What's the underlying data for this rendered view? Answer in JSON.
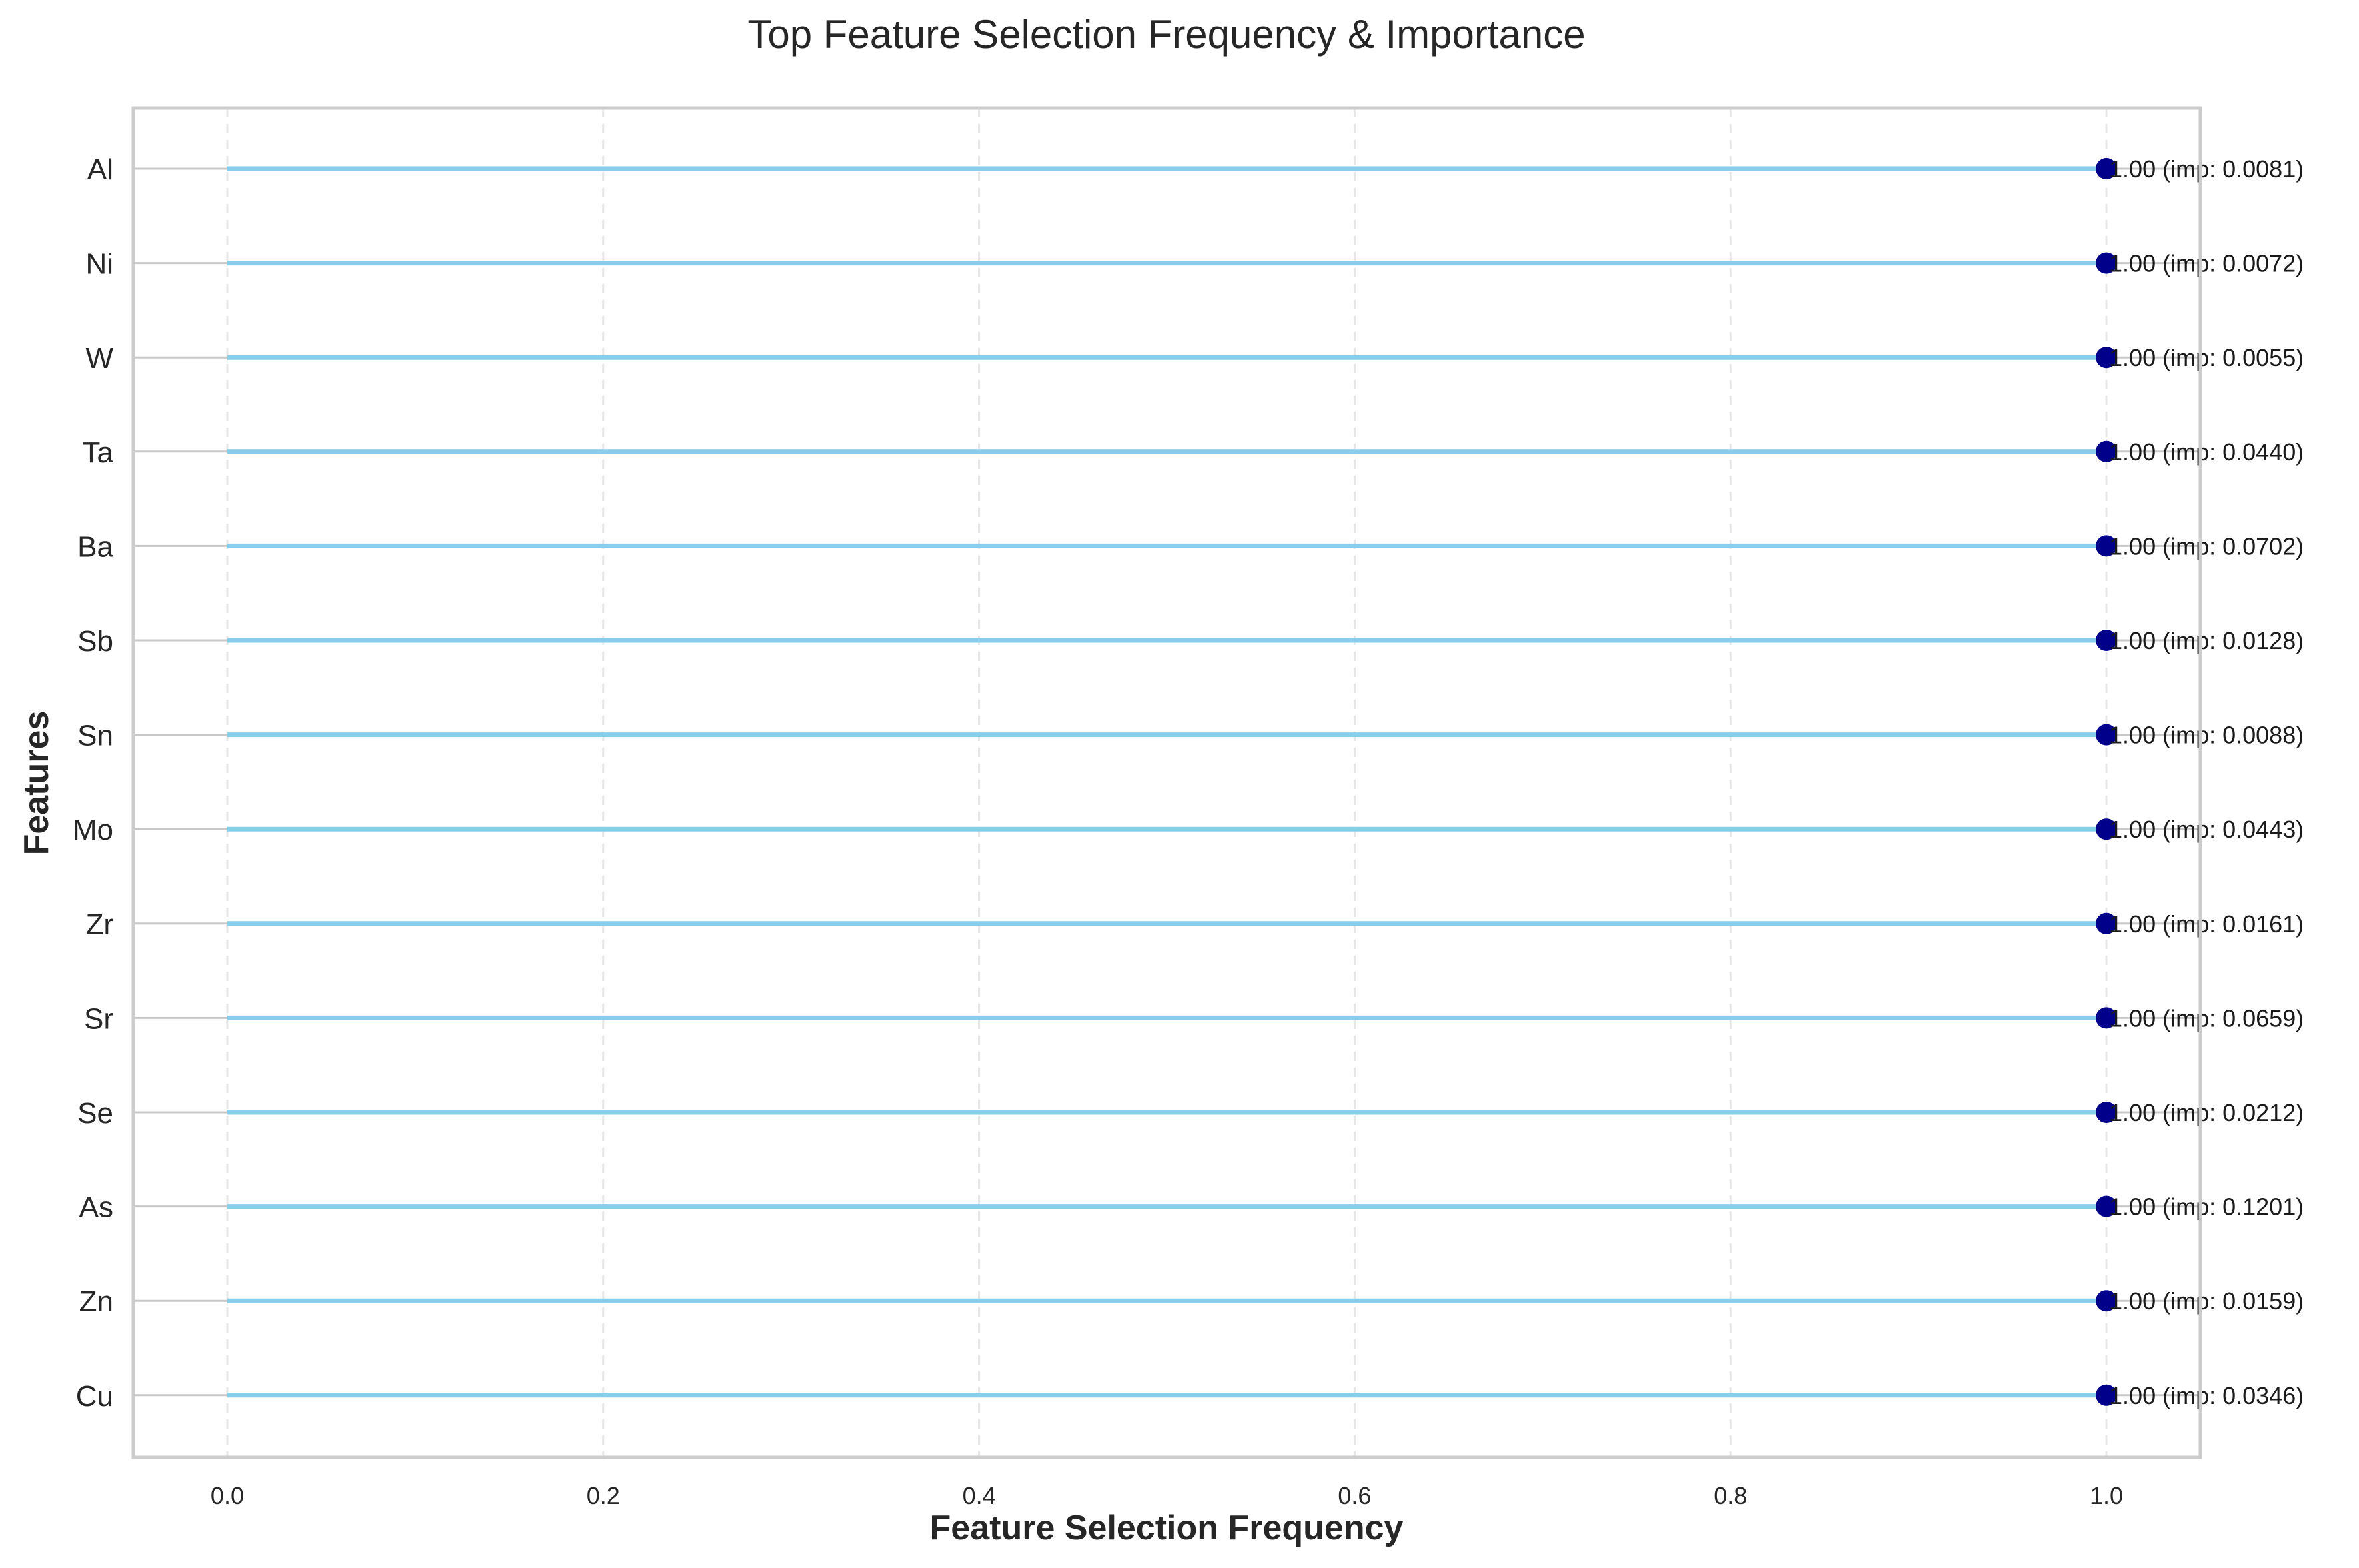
{
  "chart_data": {
    "type": "lollipop",
    "title": "Top Feature Selection Frequency & Importance",
    "xlabel": "Feature Selection Frequency",
    "ylabel": "Features",
    "xlim": [
      -0.05,
      1.05
    ],
    "xticks": [
      {
        "value": 0.0,
        "label": "0.0"
      },
      {
        "value": 0.2,
        "label": "0.2"
      },
      {
        "value": 0.4,
        "label": "0.4"
      },
      {
        "value": 0.6,
        "label": "0.6"
      },
      {
        "value": 0.8,
        "label": "0.8"
      },
      {
        "value": 1.0,
        "label": "1.0"
      }
    ],
    "grid": {
      "x": true,
      "y": true,
      "style": "dashed"
    },
    "colors": {
      "stem": "#87CEEB",
      "marker": "#00008B",
      "axis_frame": "#cccccc",
      "grid": "#e6e6e6"
    },
    "features": [
      {
        "name": "Al",
        "frequency": 1.0,
        "importance": 0.0081,
        "label": "1.00 (imp: 0.0081)"
      },
      {
        "name": "Ni",
        "frequency": 1.0,
        "importance": 0.0072,
        "label": "1.00 (imp: 0.0072)"
      },
      {
        "name": "W",
        "frequency": 1.0,
        "importance": 0.0055,
        "label": "1.00 (imp: 0.0055)"
      },
      {
        "name": "Ta",
        "frequency": 1.0,
        "importance": 0.044,
        "label": "1.00 (imp: 0.0440)"
      },
      {
        "name": "Ba",
        "frequency": 1.0,
        "importance": 0.0702,
        "label": "1.00 (imp: 0.0702)"
      },
      {
        "name": "Sb",
        "frequency": 1.0,
        "importance": 0.0128,
        "label": "1.00 (imp: 0.0128)"
      },
      {
        "name": "Sn",
        "frequency": 1.0,
        "importance": 0.0088,
        "label": "1.00 (imp: 0.0088)"
      },
      {
        "name": "Mo",
        "frequency": 1.0,
        "importance": 0.0443,
        "label": "1.00 (imp: 0.0443)"
      },
      {
        "name": "Zr",
        "frequency": 1.0,
        "importance": 0.0161,
        "label": "1.00 (imp: 0.0161)"
      },
      {
        "name": "Sr",
        "frequency": 1.0,
        "importance": 0.0659,
        "label": "1.00 (imp: 0.0659)"
      },
      {
        "name": "Se",
        "frequency": 1.0,
        "importance": 0.0212,
        "label": "1.00 (imp: 0.0212)"
      },
      {
        "name": "As",
        "frequency": 1.0,
        "importance": 0.1201,
        "label": "1.00 (imp: 0.1201)"
      },
      {
        "name": "Zn",
        "frequency": 1.0,
        "importance": 0.0159,
        "label": "1.00 (imp: 0.0159)"
      },
      {
        "name": "Cu",
        "frequency": 1.0,
        "importance": 0.0346,
        "label": "1.00 (imp: 0.0346)"
      }
    ]
  }
}
